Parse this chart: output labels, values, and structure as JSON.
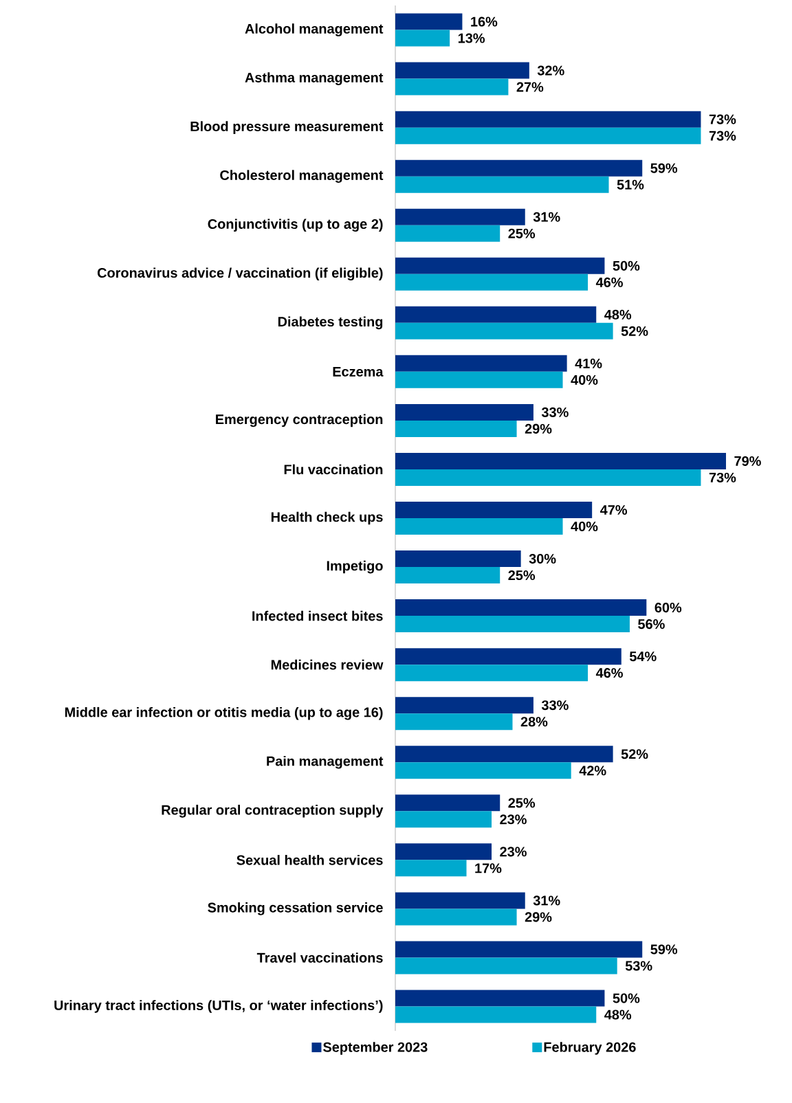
{
  "chart_data": {
    "type": "bar",
    "orientation": "horizontal",
    "legend": "bottom",
    "categories": [
      "Alcohol management",
      "Asthma management",
      "Blood pressure measurement",
      "Cholesterol management",
      "Conjunctivitis (up to age 2)",
      "Coronavirus advice / vaccination (if eligible)",
      "Diabetes testing",
      "Eczema",
      "Emergency contraception",
      "Flu vaccination",
      "Health check ups",
      "Impetigo",
      "Infected insect bites",
      "Medicines review",
      "Middle ear infection or otitis media (up to age 16)",
      "Pain management",
      "Regular oral contraception supply",
      "Sexual health services",
      "Smoking cessation service",
      "Travel vaccinations",
      "Urinary tract infections (UTIs, or ‘water infections’)"
    ],
    "series": [
      {
        "name": "September 2023",
        "color": "#003087",
        "values": [
          16,
          32,
          73,
          59,
          31,
          50,
          48,
          41,
          33,
          79,
          47,
          30,
          60,
          54,
          33,
          52,
          25,
          23,
          31,
          59,
          50
        ],
        "value_labels": [
          "16%",
          "32%",
          "73%",
          "59%",
          "31%",
          "50%",
          "48%",
          "41%",
          "33%",
          "79%",
          "47%",
          "30%",
          "60%",
          "54%",
          "33%",
          "52%",
          "25%",
          "23%",
          "31%",
          "59%",
          "50%"
        ]
      },
      {
        "name": "February 2026",
        "color": "#00a9ce",
        "values": [
          13,
          27,
          73,
          51,
          25,
          46,
          52,
          40,
          29,
          73,
          40,
          25,
          56,
          46,
          28,
          42,
          23,
          17,
          29,
          53,
          48
        ],
        "value_labels": [
          "13%",
          "27%",
          "73%",
          "51%",
          "25%",
          "46%",
          "52%",
          "40%",
          "29%",
          "73%",
          "40%",
          "25%",
          "56%",
          "46%",
          "28%",
          "42%",
          "23%",
          "17%",
          "29%",
          "53%",
          "48%"
        ]
      }
    ]
  }
}
